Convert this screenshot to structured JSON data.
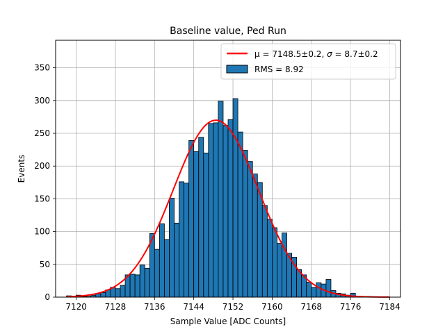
{
  "chart_data": {
    "type": "bar",
    "title": "Baseline value, Ped Run",
    "xlabel": "Sample Value [ADC Counts]",
    "ylabel": "Events",
    "xlim": [
      7115.8,
      7186.2
    ],
    "ylim": [
      0,
      392
    ],
    "xticks": [
      7120,
      7128,
      7136,
      7144,
      7152,
      7160,
      7168,
      7176,
      7184
    ],
    "yticks": [
      0,
      50,
      100,
      150,
      200,
      250,
      300,
      350
    ],
    "grid": true,
    "legend_position": "top-right",
    "histogram": {
      "name": "RMS = 8.92",
      "color": "#1f77b4",
      "edge_color": "#000000",
      "bin_width": 1,
      "bins": [
        {
          "x": 7118,
          "y": 2
        },
        {
          "x": 7119,
          "y": 1
        },
        {
          "x": 7120,
          "y": 3
        },
        {
          "x": 7121,
          "y": 1
        },
        {
          "x": 7122,
          "y": 1
        },
        {
          "x": 7123,
          "y": 3
        },
        {
          "x": 7124,
          "y": 5
        },
        {
          "x": 7125,
          "y": 7
        },
        {
          "x": 7126,
          "y": 11
        },
        {
          "x": 7127,
          "y": 15
        },
        {
          "x": 7128,
          "y": 13
        },
        {
          "x": 7129,
          "y": 18
        },
        {
          "x": 7130,
          "y": 34
        },
        {
          "x": 7131,
          "y": 35
        },
        {
          "x": 7132,
          "y": 34
        },
        {
          "x": 7133,
          "y": 49
        },
        {
          "x": 7134,
          "y": 44
        },
        {
          "x": 7135,
          "y": 97
        },
        {
          "x": 7136,
          "y": 73
        },
        {
          "x": 7137,
          "y": 112
        },
        {
          "x": 7138,
          "y": 88
        },
        {
          "x": 7139,
          "y": 151
        },
        {
          "x": 7140,
          "y": 113
        },
        {
          "x": 7141,
          "y": 176
        },
        {
          "x": 7142,
          "y": 174
        },
        {
          "x": 7143,
          "y": 239
        },
        {
          "x": 7144,
          "y": 222
        },
        {
          "x": 7145,
          "y": 244
        },
        {
          "x": 7146,
          "y": 220
        },
        {
          "x": 7147,
          "y": 265
        },
        {
          "x": 7148,
          "y": 266
        },
        {
          "x": 7149,
          "y": 299
        },
        {
          "x": 7150,
          "y": 262
        },
        {
          "x": 7151,
          "y": 271
        },
        {
          "x": 7152,
          "y": 303
        },
        {
          "x": 7153,
          "y": 252
        },
        {
          "x": 7154,
          "y": 224
        },
        {
          "x": 7155,
          "y": 207
        },
        {
          "x": 7156,
          "y": 188
        },
        {
          "x": 7157,
          "y": 175
        },
        {
          "x": 7158,
          "y": 140
        },
        {
          "x": 7159,
          "y": 119
        },
        {
          "x": 7160,
          "y": 106
        },
        {
          "x": 7161,
          "y": 82
        },
        {
          "x": 7162,
          "y": 98
        },
        {
          "x": 7163,
          "y": 67
        },
        {
          "x": 7164,
          "y": 61
        },
        {
          "x": 7165,
          "y": 42
        },
        {
          "x": 7166,
          "y": 34
        },
        {
          "x": 7167,
          "y": 23
        },
        {
          "x": 7168,
          "y": 15
        },
        {
          "x": 7169,
          "y": 22
        },
        {
          "x": 7170,
          "y": 20
        },
        {
          "x": 7171,
          "y": 27
        },
        {
          "x": 7172,
          "y": 10
        },
        {
          "x": 7173,
          "y": 6
        },
        {
          "x": 7174,
          "y": 5
        },
        {
          "x": 7175,
          "y": 3
        },
        {
          "x": 7176,
          "y": 6
        },
        {
          "x": 7177,
          "y": 1
        },
        {
          "x": 7178,
          "y": 1
        },
        {
          "x": 7179,
          "y": 1
        }
      ]
    },
    "fit": {
      "name": "μ = 7148.5±0.2, σ = 8.7±0.2",
      "label_prefix": "μ = 7148.5±0.2, ",
      "label_sigma": "σ",
      "label_suffix": " = 8.7±0.2",
      "type": "gaussian",
      "mu": 7148.5,
      "sigma": 8.7,
      "amplitude": 270,
      "x_range": [
        7118,
        7184
      ],
      "color": "#ff0000"
    },
    "legend": {
      "entries": [
        {
          "kind": "line",
          "color": "#ff0000"
        },
        {
          "kind": "patch",
          "label": "RMS = 8.92",
          "color": "#1f77b4"
        }
      ]
    }
  }
}
